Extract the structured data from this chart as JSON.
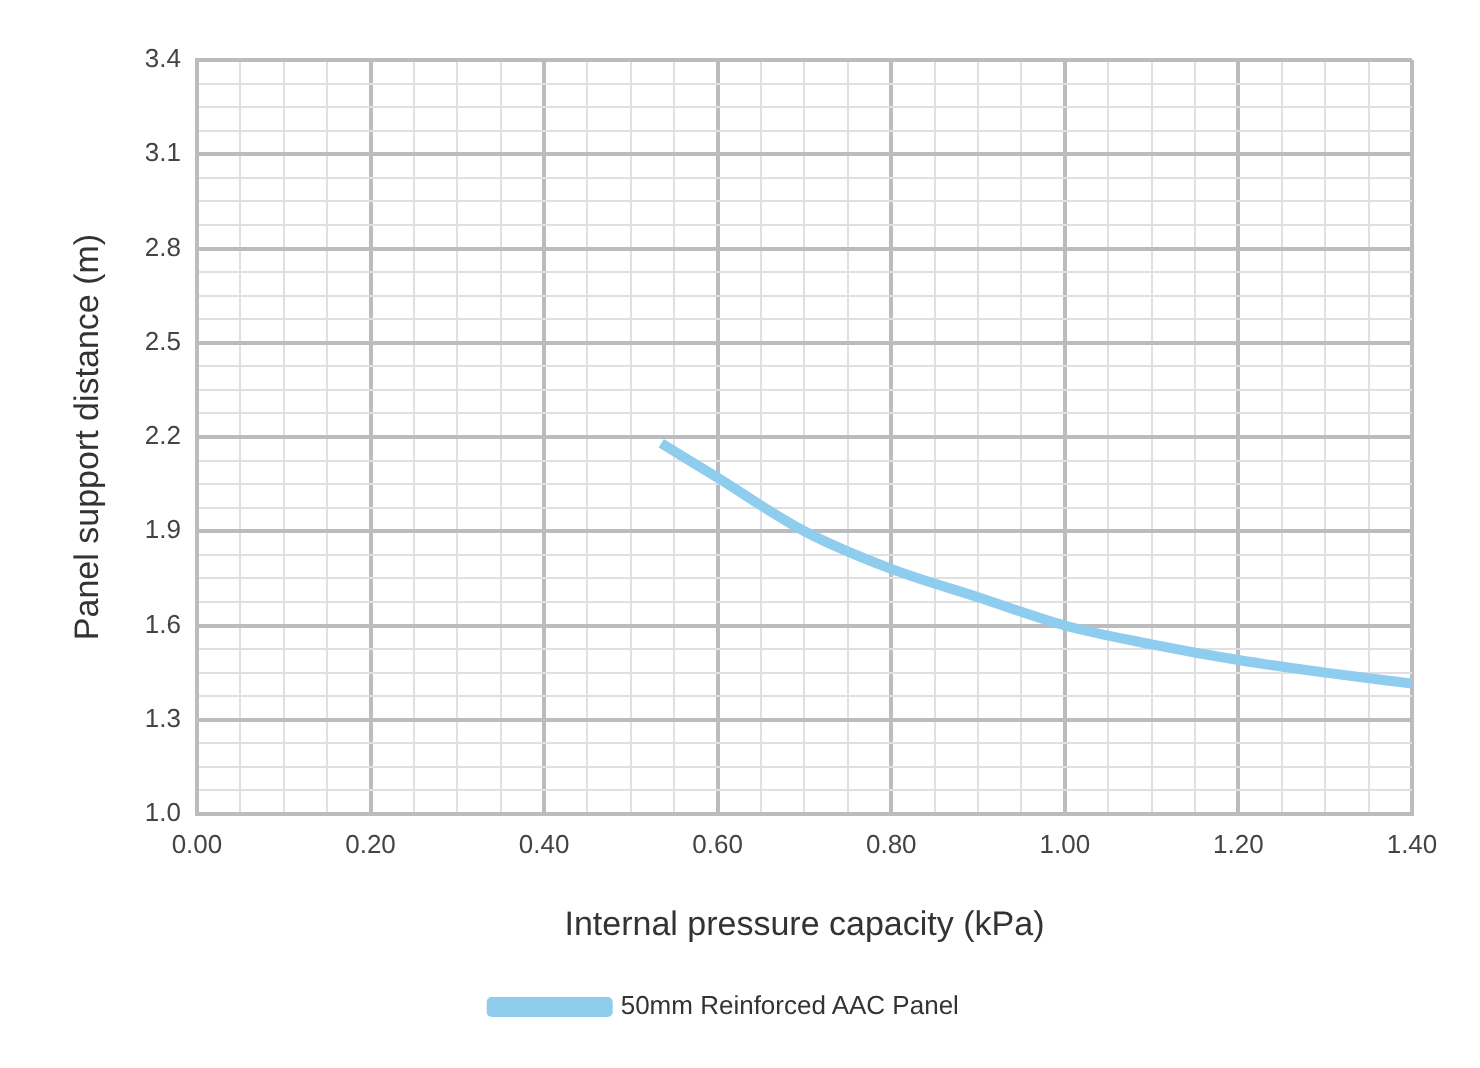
{
  "chart_data": {
    "type": "line",
    "xlabel": "Internal pressure capacity (kPa)",
    "ylabel": "Panel support distance (m)",
    "x": [
      0.535,
      0.6,
      0.7,
      0.8,
      0.9,
      1.0,
      1.1,
      1.2,
      1.3,
      1.4
    ],
    "series": [
      {
        "name": "50mm Reinforced AAC Panel",
        "color": "#8ecdee",
        "values": [
          2.18,
          2.07,
          1.9,
          1.78,
          1.69,
          1.6,
          1.54,
          1.49,
          1.45,
          1.415
        ]
      }
    ],
    "xlim": [
      0,
      1.4
    ],
    "xticks": [
      {
        "value": 0,
        "label": "0.00"
      },
      {
        "value": 0.05,
        "label": null
      },
      {
        "value": 0.1,
        "label": null
      },
      {
        "value": 0.15,
        "label": null
      },
      {
        "value": 0.2,
        "label": "0.20"
      },
      {
        "value": 0.25,
        "label": null
      },
      {
        "value": 0.3,
        "label": null
      },
      {
        "value": 0.35,
        "label": null
      },
      {
        "value": 0.4,
        "label": "0.40"
      },
      {
        "value": 0.45,
        "label": null
      },
      {
        "value": 0.5,
        "label": null
      },
      {
        "value": 0.55,
        "label": null
      },
      {
        "value": 0.6,
        "label": "0.60"
      },
      {
        "value": 0.65,
        "label": null
      },
      {
        "value": 0.7,
        "label": null
      },
      {
        "value": 0.75,
        "label": null
      },
      {
        "value": 0.8,
        "label": "0.80"
      },
      {
        "value": 0.85,
        "label": null
      },
      {
        "value": 0.9,
        "label": null
      },
      {
        "value": 0.95,
        "label": null
      },
      {
        "value": 1.0,
        "label": "1.00"
      },
      {
        "value": 1.05,
        "label": null
      },
      {
        "value": 1.1,
        "label": null
      },
      {
        "value": 1.15,
        "label": null
      },
      {
        "value": 1.2,
        "label": "1.20"
      },
      {
        "value": 1.25,
        "label": null
      },
      {
        "value": 1.3,
        "label": null
      },
      {
        "value": 1.35,
        "label": null
      },
      {
        "value": 1.4,
        "label": "1.40"
      }
    ],
    "ylim": [
      1.0,
      3.4
    ],
    "yticks": [
      {
        "value": 1.0,
        "label": "1.0"
      },
      {
        "value": 1.075,
        "label": null
      },
      {
        "value": 1.15,
        "label": null
      },
      {
        "value": 1.225,
        "label": null
      },
      {
        "value": 1.3,
        "label": "1.3"
      },
      {
        "value": 1.375,
        "label": null
      },
      {
        "value": 1.45,
        "label": null
      },
      {
        "value": 1.525,
        "label": null
      },
      {
        "value": 1.6,
        "label": "1.6"
      },
      {
        "value": 1.675,
        "label": null
      },
      {
        "value": 1.75,
        "label": null
      },
      {
        "value": 1.825,
        "label": null
      },
      {
        "value": 1.9,
        "label": "1.9"
      },
      {
        "value": 1.975,
        "label": null
      },
      {
        "value": 2.05,
        "label": null
      },
      {
        "value": 2.125,
        "label": null
      },
      {
        "value": 2.2,
        "label": "2.2"
      },
      {
        "value": 2.275,
        "label": null
      },
      {
        "value": 2.35,
        "label": null
      },
      {
        "value": 2.425,
        "label": null
      },
      {
        "value": 2.5,
        "label": "2.5"
      },
      {
        "value": 2.575,
        "label": null
      },
      {
        "value": 2.65,
        "label": null
      },
      {
        "value": 2.725,
        "label": null
      },
      {
        "value": 2.8,
        "label": "2.8"
      },
      {
        "value": 2.875,
        "label": null
      },
      {
        "value": 2.95,
        "label": null
      },
      {
        "value": 3.025,
        "label": null
      },
      {
        "value": 3.1,
        "label": "3.1"
      },
      {
        "value": 3.175,
        "label": null
      },
      {
        "value": 3.25,
        "label": null
      },
      {
        "value": 3.325,
        "label": null
      },
      {
        "value": 3.4,
        "label": "3.4"
      }
    ],
    "grid": true,
    "legend": "bottom",
    "marker": "none",
    "line_style": "solid"
  }
}
